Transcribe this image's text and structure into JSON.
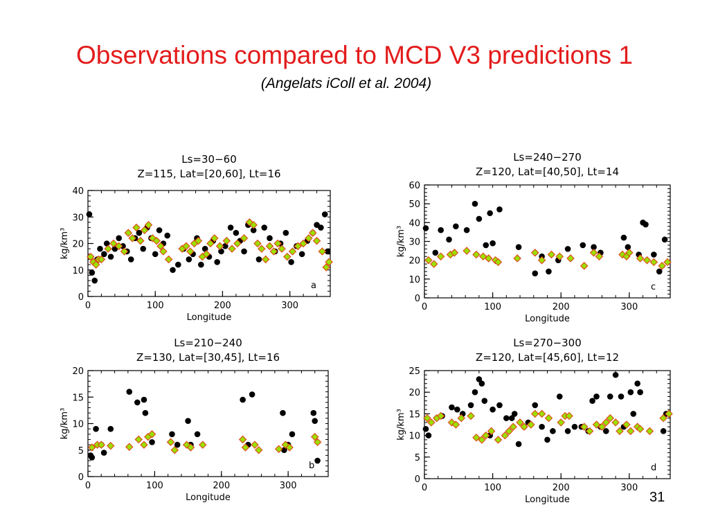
{
  "slide": {
    "title": "Observations compared to MCD V3 predictions 1",
    "subtitle": "(Angelats iColl et al. 2004)",
    "page_number": "31"
  },
  "colors": {
    "title": "#e31b1b",
    "observed_marker": "#000000",
    "predicted_fill": "#9be000",
    "predicted_edge": "#e0451a"
  },
  "legend_semantics": {
    "observed": "black circles",
    "predicted": "green diamonds"
  },
  "chart_data": [
    {
      "id": "a",
      "type": "scatter",
      "panel_label": "a",
      "title_line1": "Ls=30−60",
      "title_line2": "Z=115,  Lat=[20,60],  Lt=16",
      "xlabel": "Longitude",
      "ylabel": "kg/km³",
      "xlim": [
        0,
        360
      ],
      "ylim": [
        0,
        40
      ],
      "xticks": [
        0,
        100,
        200,
        300
      ],
      "yticks": [
        0,
        10,
        20,
        30,
        40
      ],
      "observed": {
        "x": [
          2,
          6,
          10,
          14,
          18,
          24,
          28,
          34,
          40,
          46,
          52,
          58,
          64,
          70,
          76,
          82,
          88,
          94,
          100,
          106,
          112,
          118,
          126,
          134,
          142,
          150,
          156,
          162,
          168,
          174,
          180,
          186,
          192,
          198,
          204,
          212,
          220,
          226,
          232,
          238,
          246,
          254,
          262,
          270,
          278,
          286,
          294,
          302,
          310,
          318,
          326,
          334,
          340,
          346,
          352,
          356
        ],
        "y": [
          31,
          9,
          6,
          14,
          18,
          16,
          20,
          15,
          18,
          22,
          19,
          17,
          14,
          22,
          24,
          18,
          26,
          22,
          16,
          25,
          20,
          23,
          10,
          12,
          18,
          14,
          16,
          22,
          12,
          18,
          15,
          21,
          13,
          17,
          19,
          26,
          24,
          21,
          17,
          27,
          25,
          14,
          26,
          22,
          17,
          20,
          24,
          13,
          19,
          16,
          21,
          24,
          27,
          26,
          31,
          17
        ]
      },
      "predicted": {
        "x": [
          4,
          8,
          12,
          16,
          20,
          30,
          38,
          46,
          54,
          60,
          66,
          72,
          78,
          84,
          90,
          96,
          102,
          108,
          112,
          120,
          140,
          146,
          152,
          158,
          164,
          170,
          176,
          182,
          188,
          196,
          206,
          214,
          222,
          232,
          240,
          246,
          252,
          258,
          264,
          270,
          276,
          282,
          288,
          296,
          304,
          312,
          320,
          328,
          334,
          340,
          348,
          354,
          358
        ],
        "y": [
          15,
          13,
          12,
          14,
          14,
          18,
          20,
          19,
          17,
          24,
          22,
          26,
          21,
          25,
          27,
          22,
          21,
          19,
          17,
          14,
          18,
          19,
          17,
          20,
          21,
          15,
          16,
          20,
          22,
          19,
          21,
          18,
          20,
          22,
          28,
          27,
          20,
          18,
          14,
          19,
          17,
          20,
          18,
          15,
          17,
          19,
          20,
          22,
          24,
          21,
          17,
          11,
          13
        ]
      }
    },
    {
      "id": "c",
      "type": "scatter",
      "panel_label": "c",
      "title_line1": "Ls=240−270",
      "title_line2": "Z=120,  Lat=[40,50],  Lt=14",
      "xlabel": "Longitude",
      "ylabel": "kg/km³",
      "xlim": [
        0,
        360
      ],
      "ylim": [
        0,
        60
      ],
      "xticks": [
        0,
        100,
        200,
        300
      ],
      "yticks": [
        0,
        10,
        20,
        30,
        40,
        50,
        60
      ],
      "observed": {
        "x": [
          2,
          16,
          24,
          36,
          46,
          62,
          74,
          80,
          90,
          96,
          100,
          110,
          138,
          162,
          172,
          182,
          196,
          210,
          232,
          248,
          258,
          292,
          298,
          314,
          320,
          324,
          336,
          344,
          352
        ],
        "y": [
          37,
          24,
          36,
          31,
          38,
          36,
          50,
          42,
          28,
          45,
          29,
          47,
          27,
          13,
          22,
          14,
          20,
          26,
          28,
          27,
          24,
          32,
          27,
          23,
          40,
          39,
          23,
          14,
          31
        ]
      },
      "predicted": {
        "x": [
          6,
          14,
          24,
          38,
          44,
          62,
          76,
          86,
          94,
          104,
          108,
          136,
          162,
          172,
          186,
          198,
          214,
          234,
          248,
          256,
          290,
          296,
          300,
          316,
          326,
          336,
          348,
          356
        ],
        "y": [
          20,
          18,
          22,
          23,
          24,
          25,
          23,
          22,
          21,
          20,
          19,
          21,
          24,
          20,
          23,
          22,
          21,
          17,
          24,
          22,
          23,
          22,
          24,
          21,
          20,
          19,
          17,
          19
        ]
      }
    },
    {
      "id": "b",
      "type": "scatter",
      "panel_label": "b",
      "title_line1": "Ls=210−240",
      "title_line2": "Z=130,  Lat=[30,45],  Lt=16",
      "xlabel": "Longitude",
      "ylabel": "kg/km³",
      "xlim": [
        0,
        360
      ],
      "ylim": [
        0,
        20
      ],
      "xticks": [
        0,
        100,
        200,
        300
      ],
      "yticks": [
        0,
        5,
        10,
        15,
        20
      ],
      "observed": {
        "x": [
          4,
          6,
          12,
          20,
          24,
          34,
          62,
          74,
          84,
          86,
          96,
          126,
          134,
          150,
          154,
          164,
          232,
          240,
          246,
          292,
          294,
          300,
          306,
          338,
          340,
          344
        ],
        "y": [
          4,
          3.6,
          9,
          6,
          4.5,
          9,
          16,
          14,
          14.5,
          12,
          6.5,
          8,
          6,
          10.5,
          6,
          8,
          14.5,
          6,
          15.5,
          12,
          5,
          6,
          8,
          12,
          10.5,
          3
        ],
        "labels": []
      },
      "predicted": {
        "x": [
          6,
          14,
          20,
          34,
          62,
          76,
          84,
          90,
          96,
          124,
          130,
          148,
          154,
          172,
          232,
          236,
          250,
          256,
          286,
          296,
          302,
          340,
          344
        ],
        "y": [
          5.5,
          6,
          6,
          5.8,
          5.6,
          7,
          6,
          7.5,
          8,
          6.5,
          5,
          6,
          5.5,
          6,
          7,
          5.5,
          6,
          5,
          5.2,
          6,
          5.5,
          7.5,
          6.5
        ]
      }
    },
    {
      "id": "d",
      "type": "scatter",
      "panel_label": "d",
      "title_line1": "Ls=270−300",
      "title_line2": "Z=120,  Lat=[45,60],  Lt=12",
      "xlabel": "Longitude",
      "ylabel": "kg/km³",
      "xlim": [
        0,
        360
      ],
      "ylim": [
        0,
        25
      ],
      "xticks": [
        0,
        100,
        200,
        300
      ],
      "yticks": [
        0,
        5,
        10,
        15,
        20,
        25
      ],
      "observed": {
        "x": [
          2,
          6,
          18,
          26,
          40,
          48,
          56,
          68,
          74,
          80,
          84,
          88,
          96,
          100,
          110,
          120,
          128,
          132,
          138,
          146,
          152,
          162,
          172,
          180,
          188,
          198,
          210,
          220,
          230,
          240,
          246,
          252,
          258,
          266,
          272,
          280,
          288,
          292,
          302,
          306,
          312,
          316,
          350,
          354
        ],
        "y": [
          11.5,
          10,
          14,
          14.5,
          16.5,
          16,
          15,
          17,
          20,
          23,
          22,
          18,
          10,
          16,
          17,
          14,
          14,
          15,
          8,
          12,
          13,
          17,
          12,
          9,
          11,
          19,
          11,
          12,
          12,
          11,
          18,
          19,
          12,
          11,
          19,
          24,
          19,
          12,
          20,
          15,
          22,
          20,
          11,
          15
        ]
      },
      "predicted": {
        "x": [
          4,
          10,
          18,
          24,
          40,
          46,
          54,
          68,
          76,
          84,
          90,
          98,
          108,
          118,
          124,
          130,
          140,
          146,
          156,
          162,
          172,
          182,
          200,
          206,
          212,
          234,
          242,
          252,
          260,
          266,
          272,
          280,
          286,
          296,
          302,
          312,
          316,
          330,
          350,
          358
        ],
        "y": [
          14,
          13,
          14,
          14.5,
          13,
          12.5,
          14,
          14.5,
          9.5,
          9,
          10,
          11,
          9,
          10,
          11,
          12,
          13,
          12,
          12.5,
          15,
          15,
          14,
          13,
          14.5,
          14.5,
          12,
          11,
          12.5,
          12,
          13,
          14,
          13,
          11,
          12.5,
          11,
          12,
          11.5,
          11,
          14,
          15
        ]
      }
    }
  ]
}
